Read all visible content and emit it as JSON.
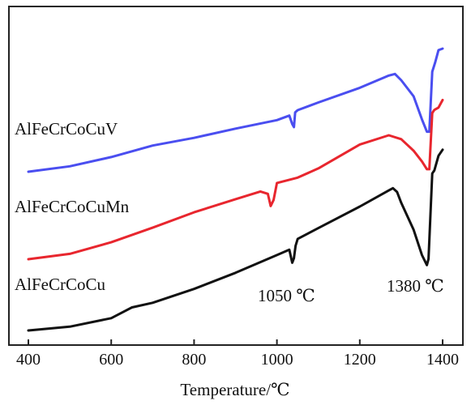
{
  "chart_data": {
    "type": "line",
    "title": "",
    "xlabel": "Temperature/℃",
    "ylabel": "",
    "xlim": [
      400,
      1450
    ],
    "xticks": [
      400,
      600,
      800,
      1000,
      1200,
      1400
    ],
    "grid": false,
    "legend": "none",
    "series": [
      {
        "name": "AlFeCrCoCuV",
        "color": "#4a4ef0",
        "x": [
          400,
          500,
          600,
          700,
          800,
          900,
          1000,
          1030,
          1037,
          1041,
          1044,
          1050,
          1100,
          1200,
          1270,
          1285,
          1300,
          1330,
          1350,
          1362,
          1368,
          1375,
          1382,
          1390,
          1400
        ],
        "y": [
          0.0,
          0.07,
          0.19,
          0.34,
          0.44,
          0.56,
          0.67,
          0.73,
          0.62,
          0.58,
          0.77,
          0.8,
          0.9,
          1.09,
          1.25,
          1.27,
          1.19,
          0.98,
          0.68,
          0.52,
          0.52,
          1.3,
          1.42,
          1.58,
          1.6
        ]
      },
      {
        "name": "AlFeCrCoCuMn",
        "color": "#e8262e",
        "x": [
          400,
          500,
          600,
          700,
          800,
          900,
          960,
          978,
          985,
          992,
          1000,
          1050,
          1100,
          1200,
          1270,
          1300,
          1330,
          1350,
          1362,
          1368,
          1375,
          1380,
          1390,
          1400
        ],
        "y": [
          0.0,
          0.07,
          0.22,
          0.41,
          0.61,
          0.78,
          0.88,
          0.85,
          0.69,
          0.77,
          0.99,
          1.06,
          1.18,
          1.49,
          1.61,
          1.56,
          1.41,
          1.27,
          1.17,
          1.17,
          1.9,
          1.94,
          1.97,
          2.07
        ]
      },
      {
        "name": "AlFeCrCoCu",
        "color": "#111111",
        "x": [
          400,
          500,
          600,
          650,
          700,
          800,
          900,
          1000,
          1030,
          1037,
          1041,
          1045,
          1050,
          1100,
          1200,
          1270,
          1280,
          1290,
          1300,
          1330,
          1350,
          1362,
          1366,
          1375,
          1380,
          1390,
          1400
        ],
        "y": [
          0.0,
          0.05,
          0.16,
          0.3,
          0.36,
          0.54,
          0.75,
          0.98,
          1.05,
          0.88,
          0.94,
          1.1,
          1.19,
          1.33,
          1.61,
          1.82,
          1.85,
          1.8,
          1.66,
          1.31,
          0.98,
          0.85,
          0.93,
          2.04,
          2.08,
          2.27,
          2.35
        ]
      }
    ],
    "annotations": [
      {
        "text": "1050 ℃"
      },
      {
        "text": "1380 ℃"
      }
    ]
  }
}
